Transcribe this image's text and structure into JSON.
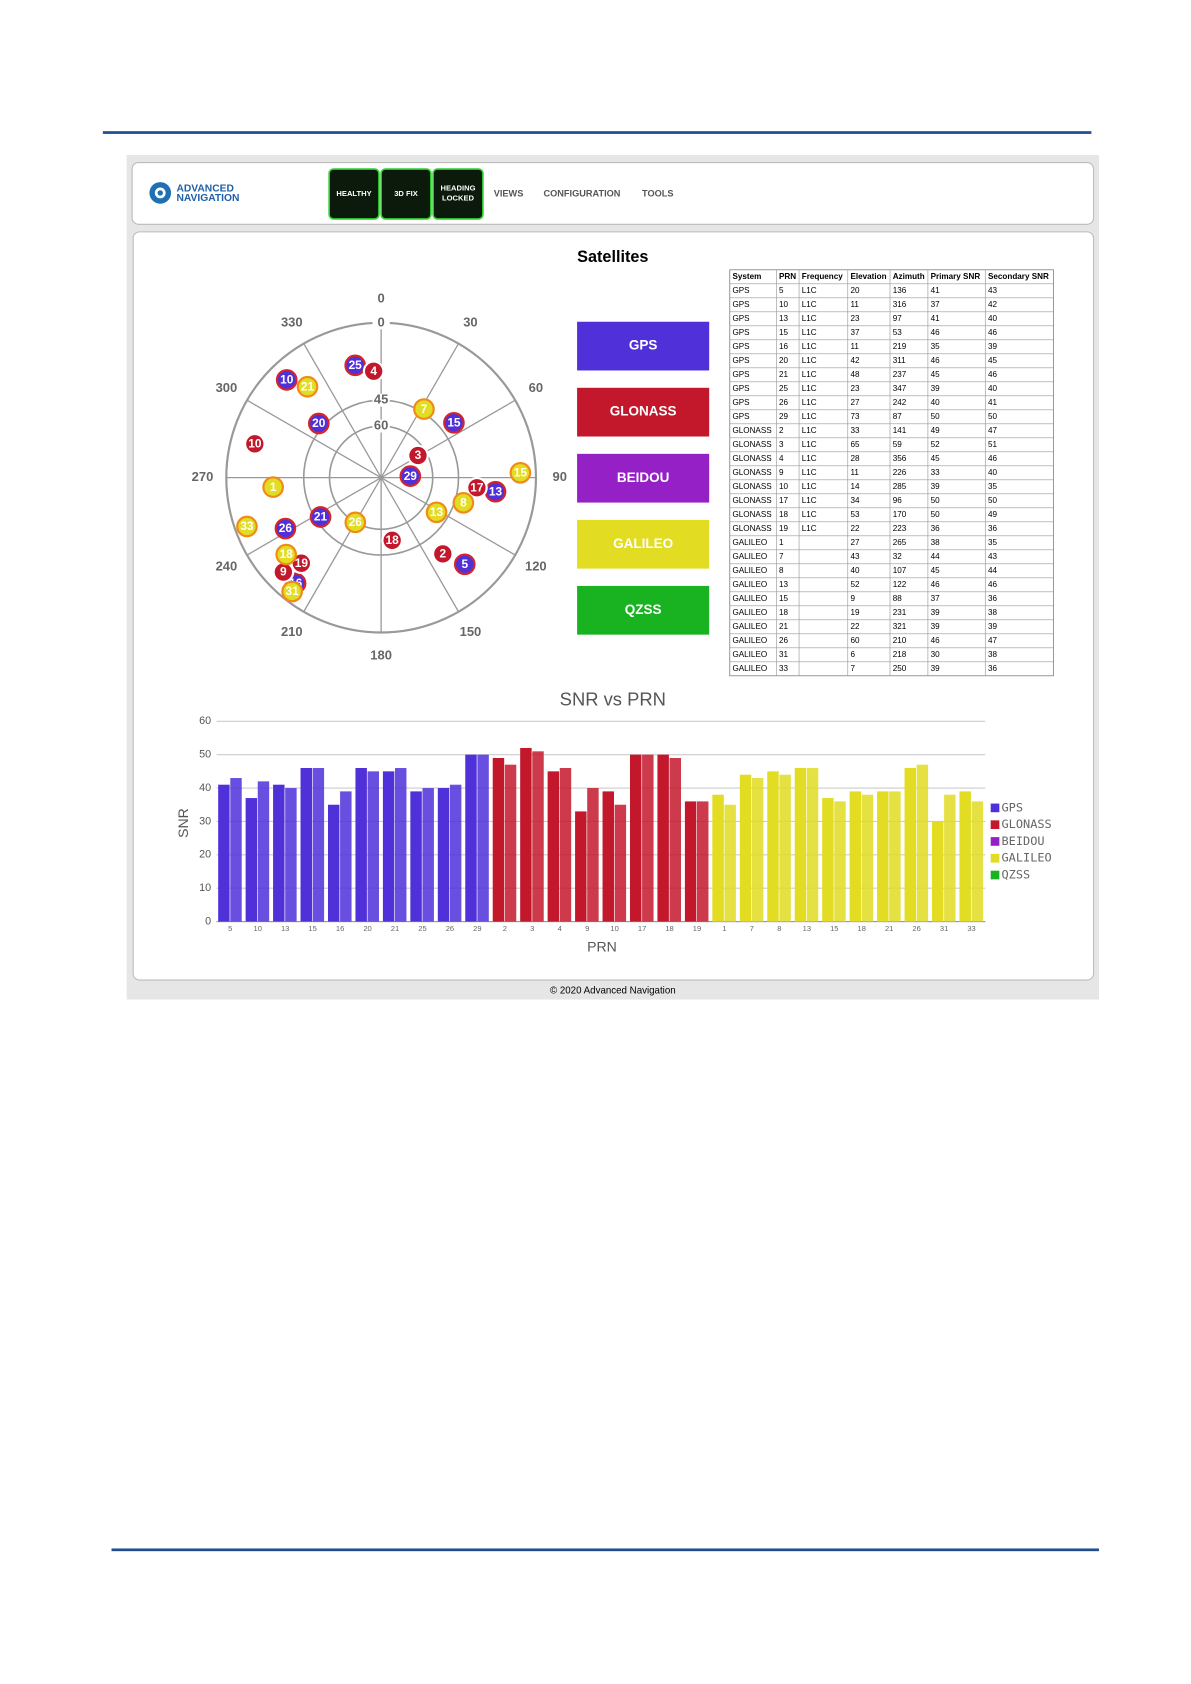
{
  "header": {
    "logo_lines": [
      "ADVANCED",
      "NAVIGATION"
    ],
    "status": [
      "HEALTHY",
      "3D FIX",
      "HEADING LOCKED"
    ],
    "menu": [
      "VIEWS",
      "CONFIGURATION",
      "TOOLS"
    ]
  },
  "title": "Satellites",
  "skyplot": {
    "azimuth_ticks": [
      0,
      30,
      60,
      90,
      120,
      150,
      180,
      210,
      240,
      270,
      300,
      330
    ],
    "elevation_ticks": [
      0,
      45,
      60
    ]
  },
  "table": {
    "columns": [
      "System",
      "PRN",
      "Frequency",
      "Elevation",
      "Azimuth",
      "Primary SNR",
      "Secondary SNR"
    ],
    "rows": [
      [
        "GPS",
        5,
        "L1C",
        20,
        136,
        41,
        43
      ],
      [
        "GPS",
        10,
        "L1C",
        11,
        316,
        37,
        42
      ],
      [
        "GPS",
        13,
        "L1C",
        23,
        97,
        41,
        40
      ],
      [
        "GPS",
        15,
        "L1C",
        37,
        53,
        46,
        46
      ],
      [
        "GPS",
        16,
        "L1C",
        11,
        219,
        35,
        39
      ],
      [
        "GPS",
        20,
        "L1C",
        42,
        311,
        46,
        45
      ],
      [
        "GPS",
        21,
        "L1C",
        48,
        237,
        45,
        46
      ],
      [
        "GPS",
        25,
        "L1C",
        23,
        347,
        39,
        40
      ],
      [
        "GPS",
        26,
        "L1C",
        27,
        242,
        40,
        41
      ],
      [
        "GPS",
        29,
        "L1C",
        73,
        87,
        50,
        50
      ],
      [
        "GLONASS",
        2,
        "L1C",
        33,
        141,
        49,
        47
      ],
      [
        "GLONASS",
        3,
        "L1C",
        65,
        59,
        52,
        51
      ],
      [
        "GLONASS",
        4,
        "L1C",
        28,
        356,
        45,
        46
      ],
      [
        "GLONASS",
        9,
        "L1C",
        11,
        226,
        33,
        40
      ],
      [
        "GLONASS",
        10,
        "L1C",
        14,
        285,
        39,
        35
      ],
      [
        "GLONASS",
        17,
        "L1C",
        34,
        96,
        50,
        50
      ],
      [
        "GLONASS",
        18,
        "L1C",
        53,
        170,
        50,
        49
      ],
      [
        "GLONASS",
        19,
        "L1C",
        22,
        223,
        36,
        36
      ],
      [
        "GALILEO",
        1,
        null,
        27,
        265,
        38,
        35
      ],
      [
        "GALILEO",
        7,
        null,
        43,
        32,
        44,
        43
      ],
      [
        "GALILEO",
        8,
        null,
        40,
        107,
        45,
        44
      ],
      [
        "GALILEO",
        13,
        null,
        52,
        122,
        46,
        46
      ],
      [
        "GALILEO",
        15,
        null,
        9,
        88,
        37,
        36
      ],
      [
        "GALILEO",
        18,
        null,
        19,
        231,
        39,
        38
      ],
      [
        "GALILEO",
        21,
        null,
        22,
        321,
        39,
        39
      ],
      [
        "GALILEO",
        26,
        null,
        60,
        210,
        46,
        47
      ],
      [
        "GALILEO",
        31,
        null,
        6,
        218,
        30,
        38
      ],
      [
        "GALILEO",
        33,
        null,
        7,
        250,
        39,
        36
      ]
    ]
  },
  "chart_data": {
    "type": "bar",
    "title": "SNR vs PRN",
    "xlabel": "PRN",
    "ylabel": "SNR",
    "ylim": [
      0,
      60
    ],
    "yticks": [
      0,
      10,
      20,
      30,
      40,
      50,
      60
    ],
    "grid": true,
    "legend": "right",
    "series": [
      {
        "name": "GPS",
        "color": "#4f30d9"
      },
      {
        "name": "GLONASS",
        "color": "#c3172c"
      },
      {
        "name": "BEIDOU",
        "color": "#9420c6"
      },
      {
        "name": "GALILEO",
        "color": "#e2dc22"
      },
      {
        "name": "QZSS",
        "color": "#19b321"
      }
    ]
  },
  "footer": "© 2020 Advanced Navigation"
}
